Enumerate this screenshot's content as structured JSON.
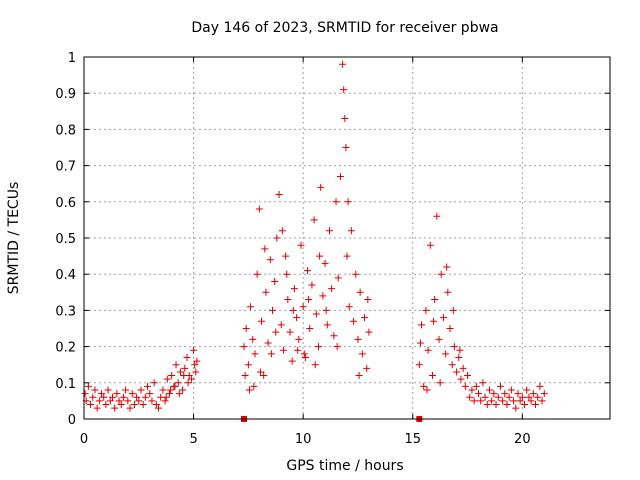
{
  "chart_data": {
    "type": "scatter",
    "title": "Day 146 of 2023, SRMTID for receiver pbwa",
    "xlabel": "GPS time / hours",
    "ylabel": "SRMTID / TECUs",
    "xlim": [
      0,
      24
    ],
    "ylim": [
      0,
      1
    ],
    "xticks": [
      "0",
      "5",
      "10",
      "15",
      "20"
    ],
    "yticks": [
      "0",
      "0.1",
      "0.2",
      "0.3",
      "0.4",
      "0.5",
      "0.6",
      "0.7",
      "0.8",
      "0.9",
      "1"
    ],
    "grid": true,
    "marker_color": "#e00000",
    "series": [
      {
        "name": "SRMTID",
        "marker": "plus",
        "points": [
          [
            0.05,
            0.07
          ],
          [
            0.1,
            0.05
          ],
          [
            0.2,
            0.09
          ],
          [
            0.3,
            0.04
          ],
          [
            0.4,
            0.06
          ],
          [
            0.5,
            0.08
          ],
          [
            0.6,
            0.03
          ],
          [
            0.7,
            0.05
          ],
          [
            0.8,
            0.07
          ],
          [
            0.9,
            0.06
          ],
          [
            1.0,
            0.04
          ],
          [
            1.1,
            0.08
          ],
          [
            1.2,
            0.05
          ],
          [
            1.3,
            0.06
          ],
          [
            1.4,
            0.03
          ],
          [
            1.5,
            0.07
          ],
          [
            1.6,
            0.05
          ],
          [
            1.7,
            0.04
          ],
          [
            1.8,
            0.06
          ],
          [
            1.9,
            0.08
          ],
          [
            2.0,
            0.05
          ],
          [
            2.1,
            0.03
          ],
          [
            2.2,
            0.07
          ],
          [
            2.3,
            0.04
          ],
          [
            2.4,
            0.06
          ],
          [
            2.5,
            0.05
          ],
          [
            2.6,
            0.08
          ],
          [
            2.7,
            0.04
          ],
          [
            2.8,
            0.06
          ],
          [
            2.9,
            0.09
          ],
          [
            3.0,
            0.07
          ],
          [
            3.1,
            0.05
          ],
          [
            3.2,
            0.1
          ],
          [
            3.3,
            0.04
          ],
          [
            3.4,
            0.03
          ],
          [
            3.5,
            0.06
          ],
          [
            3.6,
            0.08
          ],
          [
            3.7,
            0.05
          ],
          [
            3.8,
            0.11
          ],
          [
            3.9,
            0.07
          ],
          [
            4.0,
            0.12
          ],
          [
            4.1,
            0.09
          ],
          [
            4.2,
            0.15
          ],
          [
            4.3,
            0.1
          ],
          [
            4.4,
            0.13
          ],
          [
            4.5,
            0.08
          ],
          [
            4.6,
            0.14
          ],
          [
            4.7,
            0.17
          ],
          [
            4.8,
            0.12
          ],
          [
            4.9,
            0.11
          ],
          [
            5.0,
            0.19
          ],
          [
            5.05,
            0.15
          ],
          [
            5.1,
            0.13
          ],
          [
            5.15,
            0.16
          ],
          [
            4.75,
            0.1
          ],
          [
            4.55,
            0.12
          ],
          [
            4.35,
            0.07
          ],
          [
            4.15,
            0.09
          ],
          [
            3.95,
            0.08
          ],
          [
            3.75,
            0.06
          ],
          [
            7.3,
            0.2
          ],
          [
            7.4,
            0.25
          ],
          [
            7.5,
            0.15
          ],
          [
            7.6,
            0.31
          ],
          [
            7.7,
            0.22
          ],
          [
            7.8,
            0.18
          ],
          [
            7.9,
            0.4
          ],
          [
            8.0,
            0.58
          ],
          [
            8.1,
            0.27
          ],
          [
            8.2,
            0.12
          ],
          [
            8.3,
            0.35
          ],
          [
            8.4,
            0.21
          ],
          [
            8.5,
            0.44
          ],
          [
            8.6,
            0.3
          ],
          [
            8.7,
            0.38
          ],
          [
            8.8,
            0.5
          ],
          [
            8.9,
            0.62
          ],
          [
            9.0,
            0.26
          ],
          [
            9.1,
            0.19
          ],
          [
            9.2,
            0.45
          ],
          [
            9.3,
            0.33
          ],
          [
            9.4,
            0.24
          ],
          [
            9.5,
            0.16
          ],
          [
            9.6,
            0.36
          ],
          [
            9.7,
            0.28
          ],
          [
            9.8,
            0.22
          ],
          [
            9.9,
            0.48
          ],
          [
            10.0,
            0.31
          ],
          [
            10.1,
            0.17
          ],
          [
            10.2,
            0.41
          ],
          [
            10.3,
            0.25
          ],
          [
            10.4,
            0.37
          ],
          [
            10.5,
            0.55
          ],
          [
            10.6,
            0.29
          ],
          [
            10.7,
            0.2
          ],
          [
            10.8,
            0.64
          ],
          [
            10.9,
            0.34
          ],
          [
            11.0,
            0.43
          ],
          [
            11.1,
            0.26
          ],
          [
            11.2,
            0.52
          ],
          [
            11.3,
            0.36
          ],
          [
            11.4,
            0.23
          ],
          [
            11.5,
            0.6
          ],
          [
            11.6,
            0.39
          ],
          [
            11.7,
            0.67
          ],
          [
            11.8,
            0.98
          ],
          [
            11.85,
            0.91
          ],
          [
            11.9,
            0.83
          ],
          [
            11.95,
            0.75
          ],
          [
            12.0,
            0.45
          ],
          [
            12.1,
            0.31
          ],
          [
            12.2,
            0.52
          ],
          [
            12.3,
            0.27
          ],
          [
            12.4,
            0.4
          ],
          [
            12.5,
            0.22
          ],
          [
            12.6,
            0.35
          ],
          [
            12.7,
            0.18
          ],
          [
            12.8,
            0.28
          ],
          [
            12.9,
            0.14
          ],
          [
            13.0,
            0.24
          ],
          [
            7.35,
            0.12
          ],
          [
            7.55,
            0.08
          ],
          [
            8.05,
            0.13
          ],
          [
            8.55,
            0.18
          ],
          [
            9.05,
            0.52
          ],
          [
            9.55,
            0.3
          ],
          [
            10.05,
            0.18
          ],
          [
            10.55,
            0.15
          ],
          [
            11.05,
            0.3
          ],
          [
            11.55,
            0.2
          ],
          [
            12.05,
            0.6
          ],
          [
            12.55,
            0.12
          ],
          [
            12.95,
            0.33
          ],
          [
            7.75,
            0.09
          ],
          [
            8.25,
            0.47
          ],
          [
            8.75,
            0.24
          ],
          [
            9.25,
            0.4
          ],
          [
            9.75,
            0.19
          ],
          [
            10.25,
            0.33
          ],
          [
            10.75,
            0.45
          ],
          [
            15.3,
            0.15
          ],
          [
            15.4,
            0.26
          ],
          [
            15.5,
            0.09
          ],
          [
            15.6,
            0.3
          ],
          [
            15.7,
            0.19
          ],
          [
            15.8,
            0.48
          ],
          [
            15.9,
            0.12
          ],
          [
            16.0,
            0.33
          ],
          [
            16.1,
            0.56
          ],
          [
            16.2,
            0.22
          ],
          [
            16.3,
            0.4
          ],
          [
            16.4,
            0.28
          ],
          [
            16.5,
            0.18
          ],
          [
            16.6,
            0.35
          ],
          [
            16.7,
            0.25
          ],
          [
            16.8,
            0.15
          ],
          [
            16.9,
            0.2
          ],
          [
            17.0,
            0.13
          ],
          [
            17.1,
            0.17
          ],
          [
            17.2,
            0.11
          ],
          [
            17.3,
            0.14
          ],
          [
            17.4,
            0.09
          ],
          [
            17.5,
            0.12
          ],
          [
            15.35,
            0.21
          ],
          [
            15.65,
            0.08
          ],
          [
            15.95,
            0.27
          ],
          [
            16.25,
            0.1
          ],
          [
            16.55,
            0.42
          ],
          [
            16.85,
            0.3
          ],
          [
            17.15,
            0.19
          ],
          [
            17.6,
            0.06
          ],
          [
            17.7,
            0.08
          ],
          [
            17.8,
            0.05
          ],
          [
            17.9,
            0.09
          ],
          [
            18.0,
            0.07
          ],
          [
            18.1,
            0.05
          ],
          [
            18.2,
            0.1
          ],
          [
            18.3,
            0.06
          ],
          [
            18.4,
            0.04
          ],
          [
            18.5,
            0.08
          ],
          [
            18.6,
            0.05
          ],
          [
            18.7,
            0.07
          ],
          [
            18.8,
            0.04
          ],
          [
            18.9,
            0.06
          ],
          [
            19.0,
            0.09
          ],
          [
            19.1,
            0.05
          ],
          [
            19.2,
            0.07
          ],
          [
            19.3,
            0.04
          ],
          [
            19.4,
            0.06
          ],
          [
            19.5,
            0.08
          ],
          [
            19.6,
            0.05
          ],
          [
            19.7,
            0.03
          ],
          [
            19.8,
            0.07
          ],
          [
            19.9,
            0.05
          ],
          [
            20.0,
            0.06
          ],
          [
            20.1,
            0.04
          ],
          [
            20.2,
            0.08
          ],
          [
            20.3,
            0.06
          ],
          [
            20.4,
            0.05
          ],
          [
            20.5,
            0.07
          ],
          [
            20.6,
            0.04
          ],
          [
            20.7,
            0.06
          ],
          [
            20.8,
            0.09
          ],
          [
            20.9,
            0.05
          ],
          [
            21.0,
            0.07
          ]
        ]
      },
      {
        "name": "outage markers",
        "marker": "square",
        "points": [
          [
            7.3,
            0.0
          ],
          [
            15.3,
            0.0
          ]
        ]
      }
    ]
  }
}
